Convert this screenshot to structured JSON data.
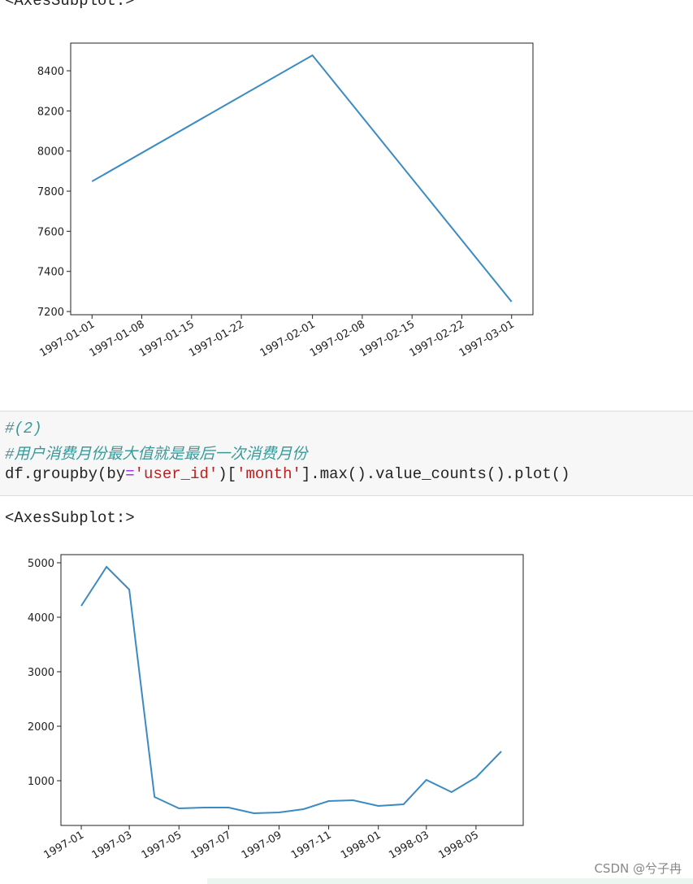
{
  "output_label_1": "<AxesSubplot:>",
  "code": {
    "comment_1": "#(2)",
    "comment_2": "#用户消费月份最大值就是最后一次消费月份",
    "tokens": [
      "df.groupby(by",
      "=",
      "'user_id'",
      ")[",
      "'month'",
      "].max().value_counts().plot()"
    ]
  },
  "output_label_2": "<AxesSubplot:>",
  "watermark": "CSDN @兮子冉",
  "chart_data": [
    {
      "type": "line",
      "color": "#3b8bc2",
      "x": [
        "1997-01-01",
        "1997-02-01",
        "1997-03-01"
      ],
      "values": [
        7849,
        8477,
        7249
      ],
      "xlim": [
        "1996-12-29",
        "1997-03-04"
      ],
      "xticks": [
        "1997-01-01",
        "1997-01-08",
        "1997-01-15",
        "1997-01-22",
        "1997-02-01",
        "1997-02-08",
        "1997-02-15",
        "1997-02-22",
        "1997-03-01"
      ],
      "ylim": [
        7184,
        8538
      ],
      "yticks": [
        7200,
        7400,
        7600,
        7800,
        8000,
        8200,
        8400
      ]
    },
    {
      "type": "line",
      "color": "#3b8bc2",
      "x": [
        "1997-01",
        "1997-02",
        "1997-03",
        "1997-04",
        "1997-05",
        "1997-06",
        "1997-07",
        "1997-08",
        "1997-09",
        "1997-10",
        "1997-11",
        "1997-12",
        "1998-01",
        "1998-02",
        "1998-03",
        "1998-04",
        "1998-05",
        "1998-06"
      ],
      "values": [
        4209,
        4925,
        4507,
        701,
        493,
        508,
        508,
        403,
        418,
        478,
        627,
        642,
        537,
        567,
        1015,
        791,
        1060,
        1537
      ],
      "xlim": [
        "1996-12-07",
        "1998-06-28"
      ],
      "xticks": [
        "1997-01",
        "1997-03",
        "1997-05",
        "1997-07",
        "1997-09",
        "1997-11",
        "1998-01",
        "1998-03",
        "1998-05"
      ],
      "ylim": [
        179,
        5149
      ],
      "yticks": [
        1000,
        2000,
        3000,
        4000,
        5000
      ]
    }
  ]
}
